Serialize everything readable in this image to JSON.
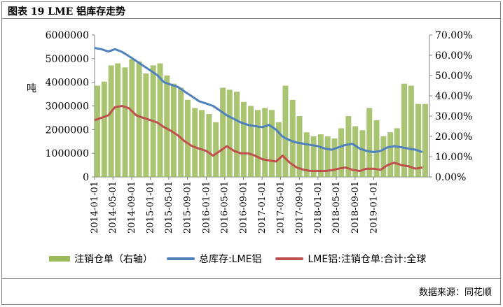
{
  "title": "图表 19 LME 铝库存走势",
  "source": "数据来源：同花顺",
  "chart_data": {
    "type": "line",
    "y_left_label": "吨",
    "y_left_ticks": [
      "6000000",
      "5000000",
      "4000000",
      "3000000",
      "2000000",
      "1000000",
      "0"
    ],
    "y_left_range": [
      0,
      6000000
    ],
    "y_right_ticks": [
      "70.00%",
      "60.00%",
      "50.00%",
      "40.00%",
      "30.00%",
      "20.00%",
      "10.00%",
      "0.00%"
    ],
    "y_right_range": [
      0,
      0.7
    ],
    "x_range": [
      "2014-01-01",
      "2019-12-31"
    ],
    "x_ticks": [
      "2014-01-01",
      "2014-05-01",
      "2014-09-01",
      "2015-01-01",
      "2015-05-01",
      "2015-09-01",
      "2016-01-01",
      "2016-05-01",
      "2016-09-01",
      "2017-01-01",
      "2017-05-01",
      "2017-09-01",
      "2018-01-01",
      "2018-05-01",
      "2018-09-01",
      "2019-01-01"
    ],
    "series": [
      {
        "name": "注销仓单（右轴）",
        "type": "bar",
        "axis": "right",
        "color": "#9bbb59",
        "x": [
          "2014-01-01",
          "2014-02-15",
          "2014-04-01",
          "2014-05-15",
          "2014-07-01",
          "2014-08-15",
          "2014-10-01",
          "2014-11-15",
          "2015-01-01",
          "2015-02-15",
          "2015-04-01",
          "2015-05-15",
          "2015-07-01",
          "2015-08-15",
          "2015-10-01",
          "2015-11-15",
          "2016-01-01",
          "2016-02-15",
          "2016-04-01",
          "2016-05-15",
          "2016-07-01",
          "2016-08-15",
          "2016-10-01",
          "2016-11-15",
          "2017-01-01",
          "2017-02-15",
          "2017-04-01",
          "2017-05-15",
          "2017-07-01",
          "2017-08-15",
          "2017-10-01",
          "2017-11-15",
          "2018-01-01",
          "2018-02-15",
          "2018-04-01",
          "2018-05-15",
          "2018-07-01",
          "2018-08-15",
          "2018-10-01",
          "2018-11-15",
          "2019-01-01",
          "2019-02-15",
          "2019-04-01",
          "2019-05-15",
          "2019-07-01",
          "2019-08-15",
          "2019-10-01",
          "2019-11-15"
        ],
        "values": [
          0.45,
          0.47,
          0.55,
          0.56,
          0.54,
          0.58,
          0.57,
          0.51,
          0.55,
          0.56,
          0.5,
          0.46,
          0.44,
          0.38,
          0.34,
          0.33,
          0.31,
          0.27,
          0.44,
          0.43,
          0.42,
          0.37,
          0.35,
          0.33,
          0.34,
          0.33,
          0.27,
          0.45,
          0.38,
          0.3,
          0.22,
          0.2,
          0.21,
          0.2,
          0.19,
          0.24,
          0.3,
          0.25,
          0.23,
          0.34,
          0.28,
          0.2,
          0.22,
          0.24,
          0.46,
          0.45,
          0.36,
          0.36
        ]
      },
      {
        "name": "总库存:LME铝",
        "type": "line",
        "axis": "left",
        "color": "#4f81bd",
        "x": [
          "2014-01-01",
          "2014-02-15",
          "2014-04-01",
          "2014-05-15",
          "2014-07-01",
          "2014-08-15",
          "2014-10-01",
          "2014-11-15",
          "2015-01-01",
          "2015-02-15",
          "2015-04-01",
          "2015-05-15",
          "2015-07-01",
          "2015-08-15",
          "2015-10-01",
          "2015-11-15",
          "2016-01-01",
          "2016-02-15",
          "2016-04-01",
          "2016-05-15",
          "2016-07-01",
          "2016-08-15",
          "2016-10-01",
          "2016-11-15",
          "2017-01-01",
          "2017-02-15",
          "2017-04-01",
          "2017-05-15",
          "2017-07-01",
          "2017-08-15",
          "2017-10-01",
          "2017-11-15",
          "2018-01-01",
          "2018-02-15",
          "2018-04-01",
          "2018-05-15",
          "2018-07-01",
          "2018-08-15",
          "2018-10-01",
          "2018-11-15",
          "2019-01-01",
          "2019-02-15",
          "2019-04-01",
          "2019-05-15",
          "2019-07-01",
          "2019-08-15",
          "2019-10-01",
          "2019-11-15"
        ],
        "values": [
          5450000,
          5400000,
          5300000,
          5400000,
          5280000,
          5100000,
          4900000,
          4700000,
          4500000,
          4300000,
          4000000,
          3900000,
          3800000,
          3600000,
          3400000,
          3200000,
          3100000,
          3000000,
          2800000,
          2600000,
          2450000,
          2300000,
          2200000,
          2150000,
          2100000,
          2200000,
          2000000,
          1700000,
          1550000,
          1450000,
          1400000,
          1350000,
          1300000,
          1200000,
          1150000,
          1250000,
          1350000,
          1400000,
          1200000,
          1100000,
          1050000,
          1100000,
          1250000,
          1300000,
          1250000,
          1200000,
          1150000,
          1050000
        ]
      },
      {
        "name": "LME铝:注销仓单:合计:全球",
        "type": "line",
        "axis": "left",
        "color": "#c0504d",
        "x": [
          "2014-01-01",
          "2014-02-15",
          "2014-04-01",
          "2014-05-15",
          "2014-07-01",
          "2014-08-15",
          "2014-10-01",
          "2014-11-15",
          "2015-01-01",
          "2015-02-15",
          "2015-04-01",
          "2015-05-15",
          "2015-07-01",
          "2015-08-15",
          "2015-10-01",
          "2015-11-15",
          "2016-01-01",
          "2016-02-15",
          "2016-04-01",
          "2016-05-15",
          "2016-07-01",
          "2016-08-15",
          "2016-10-01",
          "2016-11-15",
          "2017-01-01",
          "2017-02-15",
          "2017-04-01",
          "2017-05-15",
          "2017-07-01",
          "2017-08-15",
          "2017-10-01",
          "2017-11-15",
          "2018-01-01",
          "2018-02-15",
          "2018-04-01",
          "2018-05-15",
          "2018-07-01",
          "2018-08-15",
          "2018-10-01",
          "2018-11-15",
          "2019-01-01",
          "2019-02-15",
          "2019-04-01",
          "2019-05-15",
          "2019-07-01",
          "2019-08-15",
          "2019-10-01",
          "2019-11-15"
        ],
        "values": [
          2400000,
          2500000,
          2600000,
          2950000,
          3000000,
          2900000,
          2600000,
          2500000,
          2400000,
          2300000,
          2100000,
          1950000,
          1750000,
          1500000,
          1300000,
          1200000,
          1100000,
          900000,
          1100000,
          1300000,
          1100000,
          1000000,
          1000000,
          900000,
          750000,
          700000,
          650000,
          900000,
          600000,
          400000,
          300000,
          250000,
          250000,
          250000,
          280000,
          350000,
          400000,
          300000,
          250000,
          350000,
          350000,
          300000,
          500000,
          600000,
          500000,
          450000,
          350000,
          400000
        ]
      }
    ]
  },
  "legend": {
    "bar_label": "注销仓单（右轴）",
    "total_label": "总库存:LME铝",
    "cancelled_label": "LME铝:注销仓单:合计:全球"
  }
}
